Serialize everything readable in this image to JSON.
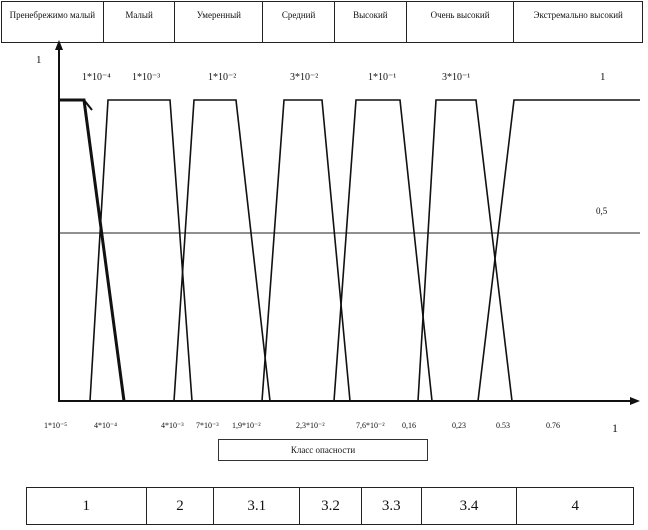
{
  "header": {
    "columns": [
      "Пренебрежимо малый",
      "Малый",
      "Умеренный",
      "Средний",
      "Высокий",
      "Очень высокий",
      "Экстремально высокий"
    ]
  },
  "chart": {
    "y_top_label": "1",
    "x_end_label": "1",
    "level_label": "0,5",
    "peak_labels": [
      "1*10⁻⁴",
      "1*10⁻³",
      "1*10⁻²",
      "3*10⁻²",
      "1*10⁻¹",
      "3*10⁻¹",
      "1"
    ],
    "x_tick_labels": [
      "1*10⁻⁵",
      "4*10⁻⁴",
      "4*10⁻³",
      "7*10⁻³",
      "1,9*10⁻²",
      "2,3*10⁻²",
      "7,6*10⁻²",
      "0,16",
      "0,23",
      "0.53",
      "0.76"
    ],
    "caption": "Класс опасности"
  },
  "classes": [
    "1",
    "2",
    "3.1",
    "3.2",
    "3.3",
    "3.4",
    "4"
  ],
  "chart_data": {
    "type": "line",
    "x_tick_labels": [
      "1*10⁻⁵",
      "4*10⁻⁴",
      "4*10⁻³",
      "7*10⁻³",
      "1,9*10⁻²",
      "2,3*10⁻²",
      "7,6*10⁻²",
      "0,16",
      "0,23",
      "0.53",
      "0.76"
    ],
    "ylim": [
      0,
      1
    ],
    "series": [
      {
        "name": "Пренебрежимо малый",
        "values": [
          1,
          1,
          0
        ]
      },
      {
        "name": "Малый",
        "values": [
          0,
          1,
          1,
          0
        ]
      },
      {
        "name": "Умеренный",
        "values": [
          0,
          1,
          1,
          0
        ]
      },
      {
        "name": "Средний",
        "values": [
          0,
          1,
          1,
          0
        ]
      },
      {
        "name": "Высокий",
        "values": [
          0,
          1,
          1,
          0
        ]
      },
      {
        "name": "Очень высокий",
        "values": [
          0,
          1,
          1,
          0
        ]
      },
      {
        "name": "Экстремально высокий",
        "values": [
          0,
          1,
          1
        ]
      }
    ]
  }
}
